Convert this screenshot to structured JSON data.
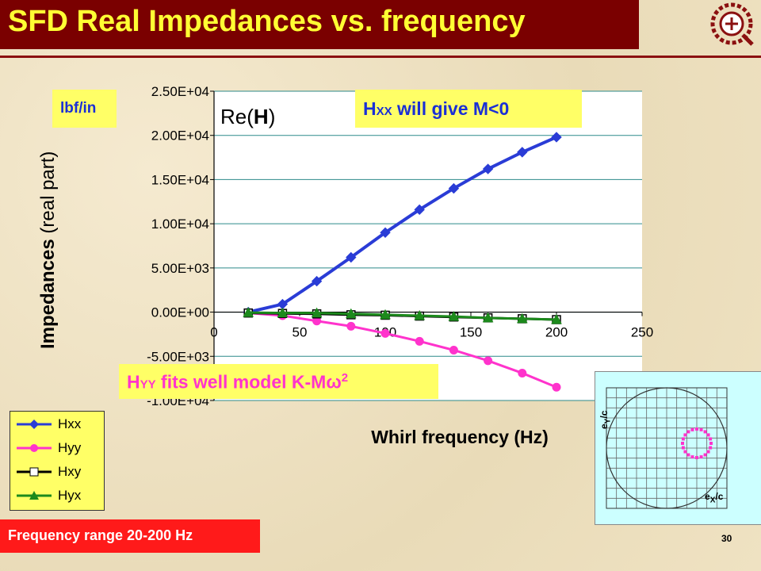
{
  "title": "SFD Real Impedances vs. frequency",
  "units_label": "lbf/in",
  "reh_label": {
    "prefix": "Re(",
    "bold": "H",
    "suffix": ")"
  },
  "annotation_hxx": {
    "sub": "XX",
    "text": " will give M<0"
  },
  "annotation_hyy": {
    "sub": "YY",
    "text": " fits well model K-M",
    "omega": "ω",
    "sup": "2"
  },
  "frequency_range": "Frequency range 20-200 Hz",
  "page_number": "30",
  "inset": {
    "y_label_main": "e",
    "y_label_sub": "Y",
    "y_label_tail": "/c",
    "x_label_main": "e",
    "x_label_sub": "X",
    "x_label_tail": "/c",
    "marker_color": "#ff33cc"
  },
  "colors": {
    "hxx": "#2a3cd6",
    "hyy": "#ff33cc",
    "hxy": "#000000",
    "hyx": "#1c8a1c",
    "title_bg": "#7a0000",
    "title_fg": "#ffff33",
    "grid": "#2d8a8a",
    "yellow": "#ffff66"
  },
  "chart_data": {
    "type": "line",
    "ylabel_bold": "Impedances",
    "ylabel_rest": " (real part)",
    "xlabel": "Whirl frequency (Hz)",
    "xlim": [
      0,
      250
    ],
    "ylim": [
      -10000,
      25000
    ],
    "x_ticks": [
      0,
      50,
      100,
      150,
      200,
      250
    ],
    "y_ticks": [
      {
        "v": 25000,
        "t": "2.50E+04"
      },
      {
        "v": 20000,
        "t": "2.00E+04"
      },
      {
        "v": 15000,
        "t": "1.50E+04"
      },
      {
        "v": 10000,
        "t": "1.00E+04"
      },
      {
        "v": 5000,
        "t": "5.00E+03"
      },
      {
        "v": 0,
        "t": "0.00E+00"
      },
      {
        "v": -5000,
        "t": "-5.00E+03"
      },
      {
        "v": -10000,
        "t": "-1.00E+04"
      }
    ],
    "x": [
      20,
      40,
      60,
      80,
      100,
      120,
      140,
      160,
      180,
      200
    ],
    "series": [
      {
        "name": "Hxx",
        "values": [
          0,
          900,
          3500,
          6200,
          9000,
          11600,
          14000,
          16200,
          18100,
          19800
        ]
      },
      {
        "name": "Hyy",
        "values": [
          -100,
          -400,
          -1000,
          -1600,
          -2400,
          -3300,
          -4300,
          -5500,
          -6900,
          -8500
        ]
      },
      {
        "name": "Hxy",
        "values": [
          -100,
          -150,
          -200,
          -300,
          -350,
          -450,
          -550,
          -650,
          -750,
          -850
        ]
      },
      {
        "name": "Hyx",
        "values": [
          -50,
          -100,
          -100,
          -200,
          -300,
          -400,
          -500,
          -650,
          -750,
          -850
        ]
      }
    ]
  }
}
